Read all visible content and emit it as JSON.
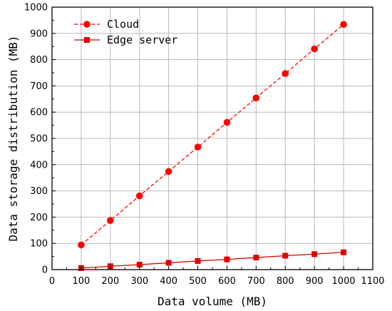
{
  "chart_data": {
    "type": "line",
    "xlabel": "Data volume (MB)",
    "ylabel": "Data storage distribution (MB)",
    "xlim": [
      0,
      1100
    ],
    "ylim": [
      0,
      1000
    ],
    "x_ticks": [
      0,
      100,
      200,
      300,
      400,
      500,
      600,
      700,
      800,
      900,
      1000,
      1100
    ],
    "y_ticks": [
      0,
      100,
      200,
      300,
      400,
      500,
      600,
      700,
      800,
      900,
      1000
    ],
    "grid": true,
    "legend_position": "top-left",
    "x": [
      100,
      200,
      300,
      400,
      500,
      600,
      700,
      800,
      900,
      1000
    ],
    "series": [
      {
        "name": "Cloud",
        "values": [
          94,
          187,
          281,
          374,
          467,
          561,
          654,
          747,
          841,
          934
        ],
        "color": "#ff0000",
        "line_style": "dashed",
        "marker": "circle"
      },
      {
        "name": "Edge server",
        "values": [
          6,
          13,
          19,
          26,
          33,
          39,
          46,
          53,
          59,
          66
        ],
        "color": "#e00000",
        "line_style": "solid",
        "marker": "square"
      }
    ]
  }
}
